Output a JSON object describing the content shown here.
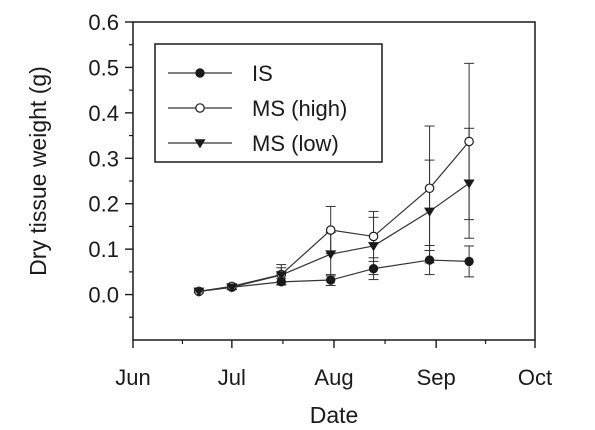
{
  "chart_data": {
    "type": "line",
    "title": "",
    "xlabel": "Date",
    "ylabel": "Dry tissue weight (g)",
    "x_ticks": [
      "Jun",
      "Jul",
      "Aug",
      "Sep",
      "Oct"
    ],
    "x_tick_dates": [
      "06-01",
      "07-01",
      "08-01",
      "09-01",
      "10-01"
    ],
    "xlim": [
      "06-01",
      "10-01"
    ],
    "y_ticks": [
      "0.0",
      "0.1",
      "0.2",
      "0.3",
      "0.4",
      "0.5",
      "0.6"
    ],
    "ylim": [
      -0.1,
      0.6
    ],
    "x": [
      "06-21",
      "07-01",
      "07-16",
      "07-31",
      "08-13",
      "08-30",
      "09-11"
    ],
    "series": [
      {
        "name": "IS",
        "marker": "filled-circle",
        "values": [
          0.007,
          0.016,
          0.028,
          0.032,
          0.057,
          0.076,
          0.073
        ],
        "error": [
          0.003,
          0.005,
          0.007,
          0.012,
          0.024,
          0.032,
          0.034
        ]
      },
      {
        "name": "MS (high)",
        "marker": "open-circle",
        "values": [
          0.007,
          0.018,
          0.044,
          0.142,
          0.128,
          0.234,
          0.337
        ],
        "error": [
          0.003,
          0.006,
          0.022,
          0.052,
          0.055,
          0.137,
          0.172
        ]
      },
      {
        "name": "MS (low)",
        "marker": "filled-triangle-down",
        "values": [
          0.007,
          0.016,
          0.043,
          0.089,
          0.107,
          0.183,
          0.245
        ],
        "error": [
          0.003,
          0.005,
          0.016,
          0.048,
          0.063,
          0.113,
          0.121
        ]
      }
    ],
    "legend": {
      "position": "top-left"
    },
    "grid": false,
    "colors": {
      "line": "#333333",
      "marker": "#1a1a1a"
    }
  }
}
